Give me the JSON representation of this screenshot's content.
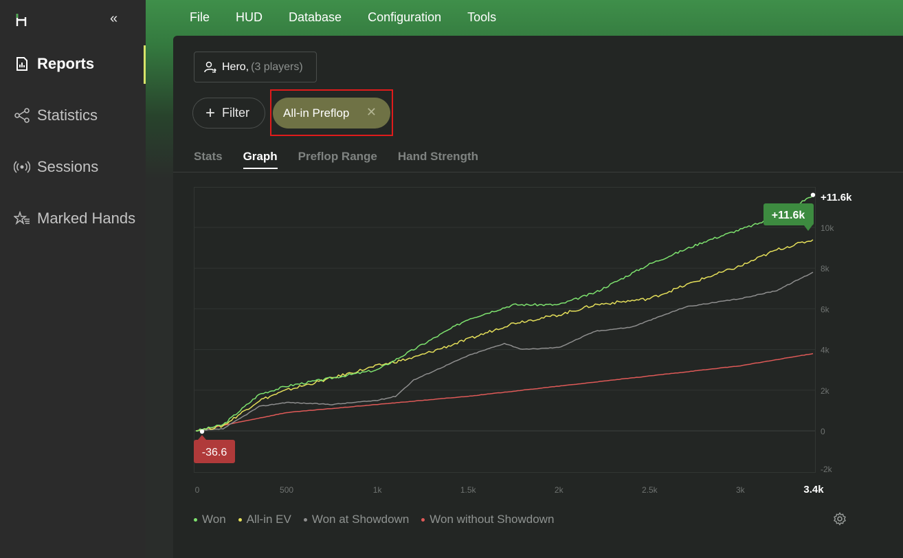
{
  "app": {
    "logo": "H"
  },
  "sidebar": {
    "items": [
      {
        "label": "Reports",
        "icon": "report-icon",
        "active": true
      },
      {
        "label": "Statistics",
        "icon": "share-nodes-icon",
        "active": false
      },
      {
        "label": "Sessions",
        "icon": "broadcast-icon",
        "active": false
      },
      {
        "label": "Marked Hands",
        "icon": "star-list-icon",
        "active": false
      }
    ]
  },
  "menu": [
    "File",
    "HUD",
    "Database",
    "Configuration",
    "Tools"
  ],
  "player": {
    "name": "Hero,",
    "count": "(3 players)"
  },
  "filter": {
    "label": "Filter"
  },
  "chip": {
    "label": "All-in Preflop",
    "close": "✕"
  },
  "tabs": [
    "Stats",
    "Graph",
    "Preflop Range",
    "Hand Strength"
  ],
  "active_tab": "Graph",
  "colors": {
    "won": "#7ee36f",
    "allin_ev": "#e6e05a",
    "showdown": "#8e8e8e",
    "no_showdown": "#e05a58",
    "accent": "#d7e36a"
  },
  "chart_data": {
    "type": "line",
    "x_ticks": [
      "0",
      "500",
      "1k",
      "1.5k",
      "2k",
      "2.5k",
      "3k",
      "3.4k"
    ],
    "y_ticks": [
      "-2k",
      "0",
      "2k",
      "4k",
      "6k",
      "8k",
      "10k"
    ],
    "xlim": [
      0,
      3400
    ],
    "ylim": [
      -2000,
      12000
    ],
    "annotations": {
      "max_label": "+11.6k",
      "max_badge": "+11.6k",
      "min_badge": "-36.6"
    },
    "series": [
      {
        "name": "Won",
        "color": "#7ee36f",
        "x": [
          0,
          150,
          350,
          500,
          750,
          1000,
          1200,
          1500,
          1750,
          2000,
          2200,
          2500,
          2800,
          3000,
          3200,
          3400
        ],
        "y": [
          0,
          300,
          1800,
          2200,
          2600,
          3000,
          4000,
          5500,
          6200,
          6200,
          6800,
          8200,
          9300,
          9900,
          10500,
          11600
        ]
      },
      {
        "name": "All-in EV",
        "color": "#e6e05a",
        "x": [
          0,
          150,
          350,
          500,
          750,
          1000,
          1200,
          1500,
          1750,
          2000,
          2200,
          2500,
          2800,
          3000,
          3200,
          3400
        ],
        "y": [
          0,
          250,
          1500,
          2000,
          2600,
          3200,
          3600,
          4500,
          5300,
          5700,
          6200,
          6500,
          7500,
          8100,
          8900,
          9400
        ]
      },
      {
        "name": "Won at Showdown",
        "color": "#8e8e8e",
        "x": [
          0,
          150,
          350,
          500,
          750,
          1000,
          1100,
          1200,
          1500,
          1700,
          1800,
          2000,
          2200,
          2400,
          2700,
          3000,
          3200,
          3400
        ],
        "y": [
          0,
          100,
          1200,
          1400,
          1300,
          1500,
          1700,
          2500,
          3700,
          4300,
          4000,
          4100,
          4900,
          5100,
          6100,
          6500,
          6900,
          7800
        ]
      },
      {
        "name": "Won without Showdown",
        "color": "#e05a58",
        "x": [
          0,
          500,
          1000,
          1500,
          2000,
          2500,
          3000,
          3400
        ],
        "y": [
          0,
          900,
          1300,
          1700,
          2200,
          2700,
          3200,
          3800
        ]
      }
    ]
  }
}
